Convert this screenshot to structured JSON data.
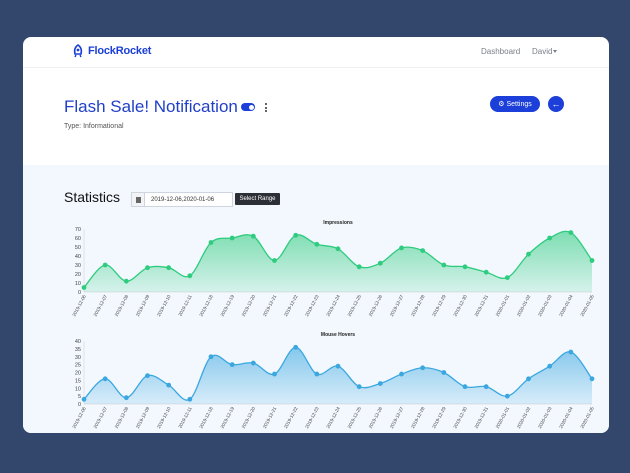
{
  "header": {
    "brand": "FlockRocket",
    "nav_dashboard": "Dashboard",
    "nav_user": "David"
  },
  "hero": {
    "title": "Flash Sale! Notification",
    "type_label": "Type: Informational",
    "toggle_on": true,
    "settings_label": "Settings",
    "back_icon": "arrow-left-icon",
    "settings_icon": "gears-icon"
  },
  "stats": {
    "title": "Statistics",
    "date_range": "2019-12-06,2020-01-06",
    "select_range_label": "Select Range"
  },
  "colors": {
    "brand": "#1b3fd8",
    "impressions": "#2ecc7e",
    "hovers": "#3aa7e0"
  },
  "chart_data": [
    {
      "type": "area",
      "title": "Impressions",
      "ylim": [
        0,
        70
      ],
      "yticks": [
        0,
        10,
        20,
        30,
        40,
        50,
        60,
        70
      ],
      "x": [
        "2019-12-06",
        "2019-12-07",
        "2019-12-08",
        "2019-12-09",
        "2019-12-10",
        "2019-12-11",
        "2019-12-18",
        "2019-12-19",
        "2019-12-20",
        "2019-12-21",
        "2019-12-22",
        "2019-12-23",
        "2019-12-24",
        "2019-12-25",
        "2019-12-26",
        "2019-12-27",
        "2019-12-28",
        "2019-12-29",
        "2019-12-30",
        "2019-12-31",
        "2020-01-01",
        "2020-01-02",
        "2020-01-03",
        "2020-01-04",
        "2020-01-05"
      ],
      "series": [
        {
          "values": [
            5,
            30,
            12,
            27,
            27,
            18,
            55,
            60,
            62,
            35,
            63,
            53,
            48,
            28,
            32,
            49,
            46,
            30,
            28,
            22,
            16,
            42,
            60,
            66,
            35
          ]
        }
      ]
    },
    {
      "type": "area",
      "title": "Mouse Hovers",
      "ylim": [
        0,
        40
      ],
      "yticks": [
        0,
        5,
        10,
        15,
        20,
        25,
        30,
        35,
        40
      ],
      "x": [
        "2019-12-06",
        "2019-12-07",
        "2019-12-08",
        "2019-12-09",
        "2019-12-10",
        "2019-12-11",
        "2019-12-18",
        "2019-12-19",
        "2019-12-20",
        "2019-12-21",
        "2019-12-22",
        "2019-12-23",
        "2019-12-24",
        "2019-12-25",
        "2019-12-26",
        "2019-12-27",
        "2019-12-28",
        "2019-12-29",
        "2019-12-30",
        "2019-12-31",
        "2020-01-01",
        "2020-01-02",
        "2020-01-03",
        "2020-01-04",
        "2020-01-05"
      ],
      "series": [
        {
          "values": [
            3,
            16,
            4,
            18,
            12,
            3,
            30,
            25,
            26,
            19,
            36,
            19,
            24,
            11,
            13,
            19,
            23,
            20,
            11,
            11,
            5,
            16,
            24,
            33,
            16
          ]
        }
      ]
    }
  ]
}
